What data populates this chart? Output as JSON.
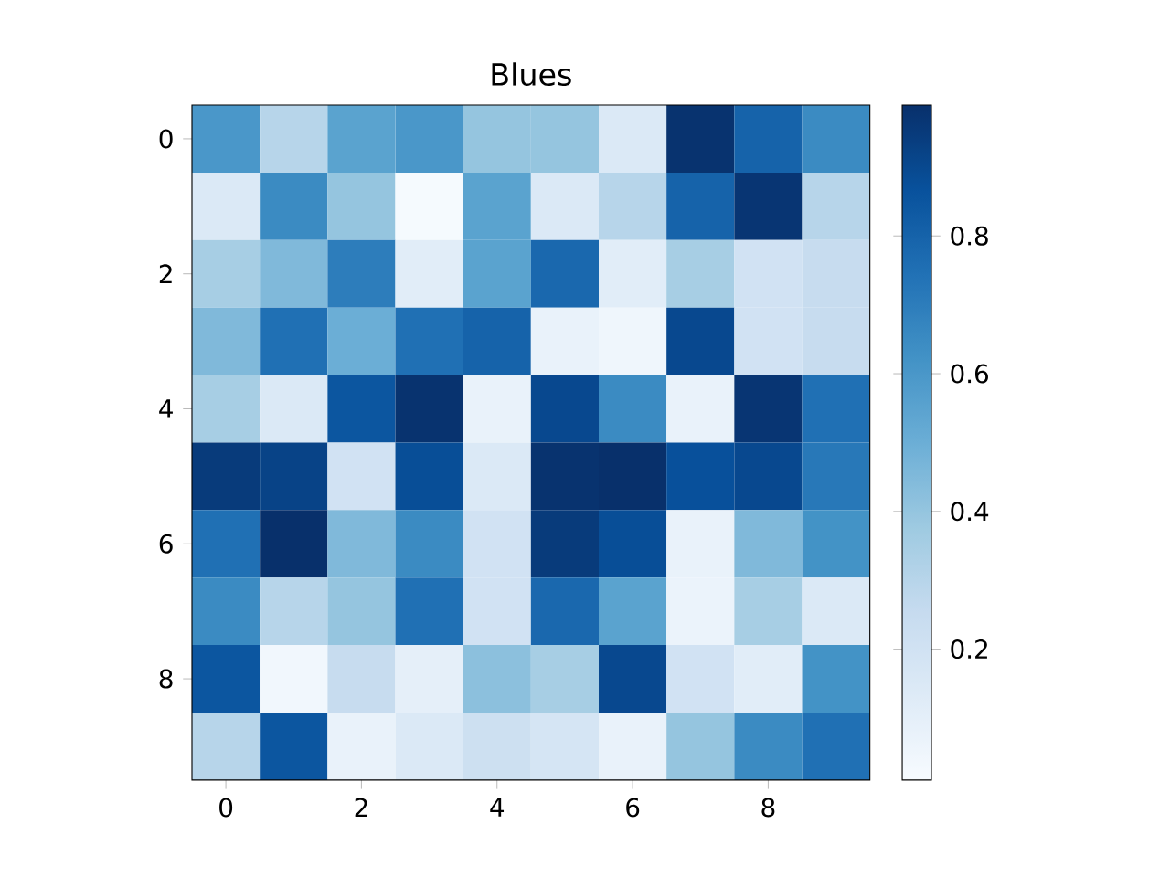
{
  "chart_data": {
    "type": "heatmap",
    "title": "Blues",
    "categories": [
      "0",
      null,
      "2",
      null,
      "4",
      null,
      "6",
      null,
      "8",
      null
    ],
    "y_categories": [
      "0",
      null,
      "2",
      null,
      "4",
      null,
      "6",
      null,
      "8",
      null
    ],
    "cells": [
      [
        0.6,
        0.3,
        0.55,
        0.6,
        0.4,
        0.4,
        0.15,
        0.98,
        0.8,
        0.65
      ],
      [
        0.15,
        0.65,
        0.4,
        0.02,
        0.55,
        0.15,
        0.3,
        0.8,
        0.97,
        0.3
      ],
      [
        0.35,
        0.45,
        0.7,
        0.12,
        0.55,
        0.78,
        0.12,
        0.35,
        0.2,
        0.25
      ],
      [
        0.45,
        0.75,
        0.5,
        0.75,
        0.8,
        0.08,
        0.05,
        0.9,
        0.2,
        0.25
      ],
      [
        0.35,
        0.15,
        0.85,
        0.98,
        0.08,
        0.9,
        0.65,
        0.08,
        0.97,
        0.75
      ],
      [
        0.95,
        0.92,
        0.2,
        0.88,
        0.15,
        0.98,
        0.99,
        0.87,
        0.9,
        0.72
      ],
      [
        0.75,
        0.99,
        0.45,
        0.65,
        0.2,
        0.95,
        0.88,
        0.08,
        0.45,
        0.62
      ],
      [
        0.65,
        0.3,
        0.4,
        0.75,
        0.2,
        0.78,
        0.55,
        0.07,
        0.35,
        0.15
      ],
      [
        0.85,
        0.04,
        0.25,
        0.1,
        0.42,
        0.35,
        0.9,
        0.2,
        0.12,
        0.62
      ],
      [
        0.3,
        0.85,
        0.08,
        0.15,
        0.22,
        0.18,
        0.08,
        0.4,
        0.65,
        0.75
      ]
    ],
    "clim": [
      0.01,
      0.99
    ],
    "cticks": [
      0.2,
      0.4,
      0.6,
      0.8
    ]
  }
}
